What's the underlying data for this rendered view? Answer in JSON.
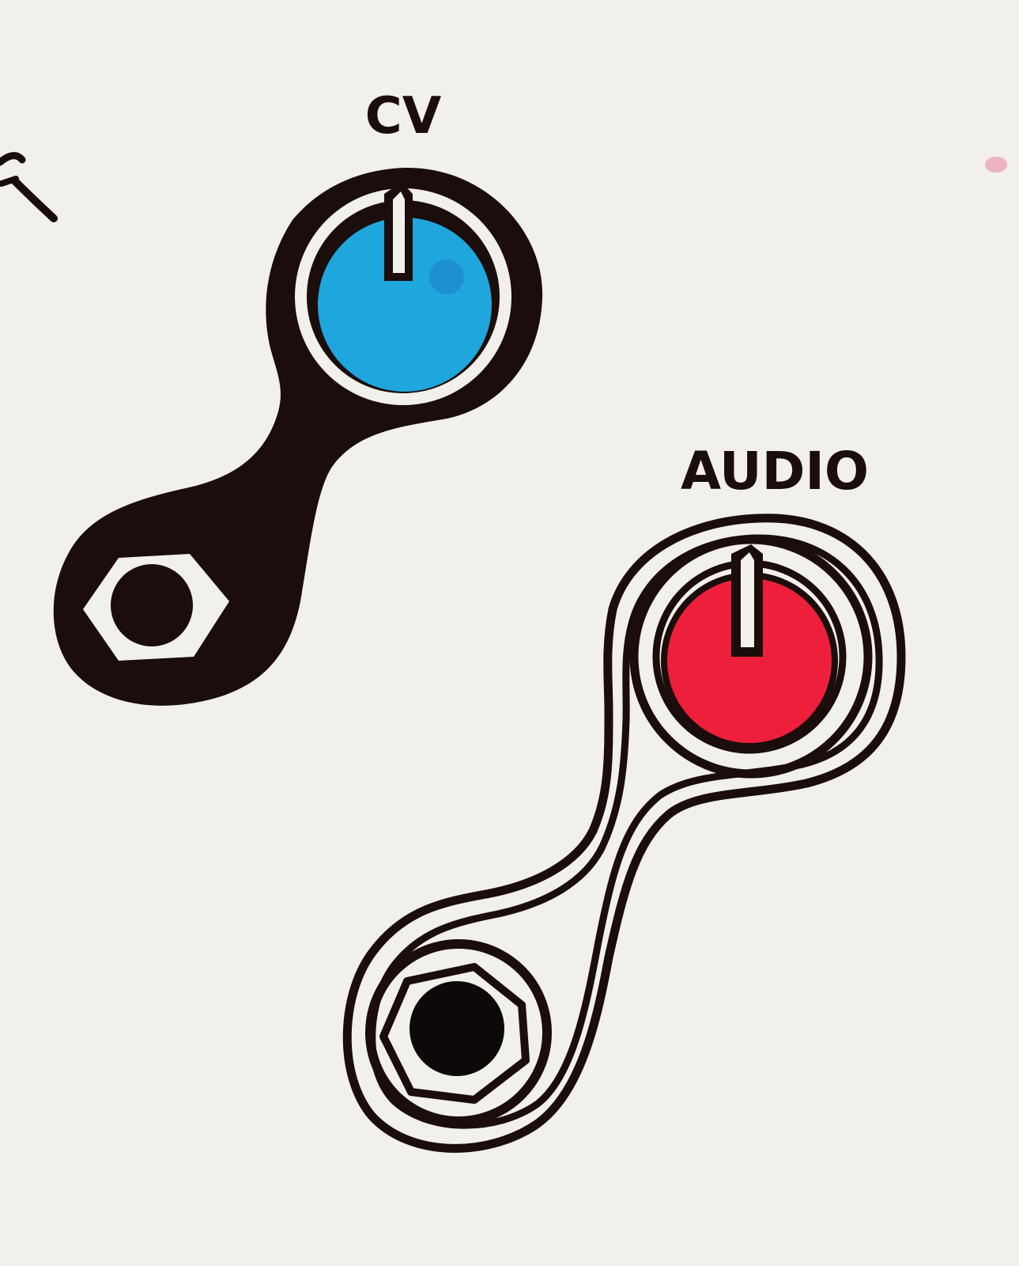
{
  "labels": {
    "cv": "CV",
    "audio": "AUDIO"
  },
  "controls": [
    {
      "name": "cv",
      "knob_color": "#1fa6dc",
      "style": "filled"
    },
    {
      "name": "audio",
      "knob_color": "#ee1f3a",
      "style": "outlined"
    }
  ],
  "colors": {
    "paper": "#f1f0ea",
    "ink": "#1a0d0b",
    "cv_knob": "#1fa6dc",
    "audio_knob": "#ee1f3a"
  }
}
